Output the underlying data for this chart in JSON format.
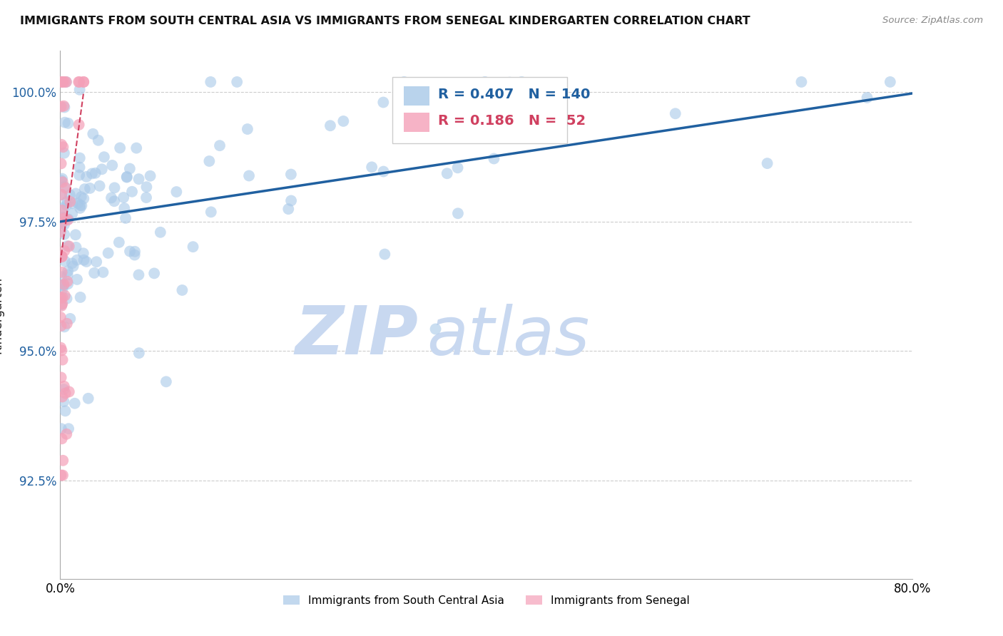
{
  "title": "IMMIGRANTS FROM SOUTH CENTRAL ASIA VS IMMIGRANTS FROM SENEGAL KINDERGARTEN CORRELATION CHART",
  "source": "Source: ZipAtlas.com",
  "ylabel": "Kindergarten",
  "xlim": [
    0.0,
    0.8
  ],
  "ylim": [
    0.906,
    1.008
  ],
  "yticks": [
    1.0,
    0.975,
    0.95,
    0.925
  ],
  "ytick_labels": [
    "100.0%",
    "97.5%",
    "95.0%",
    "92.5%"
  ],
  "blue_R": 0.407,
  "blue_N": 140,
  "pink_R": 0.186,
  "pink_N": 52,
  "blue_color": "#a8c8e8",
  "pink_color": "#f4a0b8",
  "blue_line_color": "#2060a0",
  "pink_line_color": "#d04060",
  "legend_label_blue": "Immigrants from South Central Asia",
  "legend_label_pink": "Immigrants from Senegal",
  "watermark_zip": "ZIP",
  "watermark_atlas": "atlas",
  "watermark_color": "#c8d8f0",
  "background_color": "#ffffff",
  "grid_color": "#cccccc",
  "title_color": "#111111",
  "source_color": "#888888",
  "axis_label_color": "#222222",
  "tick_color": "#2060a0"
}
